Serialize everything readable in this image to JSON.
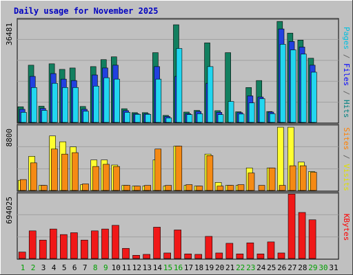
{
  "chart_data": [
    {
      "type": "bar",
      "title": "Daily usage for November 2025",
      "ymax_label": "36481",
      "ylim": [
        0,
        36481
      ],
      "categories": [
        "1",
        "2",
        "3",
        "4",
        "5",
        "6",
        "7",
        "8",
        "9",
        "10",
        "11",
        "12",
        "13",
        "14",
        "15",
        "16",
        "17",
        "18",
        "19",
        "20",
        "21",
        "22",
        "23",
        "24",
        "25",
        "26",
        "27",
        "28",
        "29",
        "30",
        "31"
      ],
      "weekend_days": [
        "1",
        "2",
        "8",
        "9",
        "15",
        "16",
        "22",
        "23",
        "29",
        "30"
      ],
      "axis_label_parts": [
        {
          "text": "Pages",
          "color": "#00c0e0"
        },
        {
          "text": " / ",
          "color": "#666666"
        },
        {
          "text": "Files",
          "color": "#0000ff"
        },
        {
          "text": " / ",
          "color": "#666666"
        },
        {
          "text": "Hits",
          "color": "#008080"
        }
      ],
      "series": [
        {
          "name": "Hits",
          "color": "#127f5f",
          "values": [
            5600,
            20500,
            5800,
            21000,
            19000,
            19500,
            5700,
            20000,
            22500,
            23500,
            4900,
            3500,
            3500,
            25000,
            2500,
            35000,
            3700,
            4300,
            28500,
            4200,
            25000,
            3800,
            12500,
            15000,
            3900,
            36200,
            32000,
            29500,
            23000,
            0,
            0
          ]
        },
        {
          "name": "Files",
          "color": "#2141e0",
          "values": [
            4700,
            16500,
            5000,
            17500,
            15500,
            15000,
            4700,
            17000,
            19500,
            20500,
            4200,
            3100,
            3100,
            20000,
            2100,
            16500,
            3100,
            3900,
            14000,
            3600,
            0,
            3500,
            9500,
            9100,
            3700,
            33500,
            29000,
            27000,
            20500,
            0,
            0
          ]
        },
        {
          "name": "Pages",
          "color": "#21d6f0",
          "values": [
            3600,
            12500,
            4300,
            14000,
            12500,
            12500,
            4000,
            13000,
            16000,
            15500,
            3600,
            2900,
            2900,
            15500,
            1600,
            26500,
            2800,
            3100,
            20000,
            2800,
            7500,
            3000,
            7000,
            8500,
            3100,
            28000,
            26000,
            24500,
            18000,
            0,
            0
          ]
        }
      ]
    },
    {
      "type": "bar",
      "ymax_label": "8800",
      "ylim": [
        0,
        8800
      ],
      "axis_label_parts": [
        {
          "text": "Sites",
          "color": "#ff8000"
        },
        {
          "text": " / ",
          "color": "#666666"
        },
        {
          "text": "Visits",
          "color": "#e0e000"
        }
      ],
      "series": [
        {
          "name": "Visits",
          "color": "#ffff30",
          "values": [
            1400,
            4700,
            700,
            7500,
            6700,
            6000,
            800,
            4200,
            4200,
            3500,
            700,
            600,
            600,
            4200,
            600,
            6100,
            700,
            600,
            5000,
            1100,
            700,
            700,
            3100,
            0,
            3100,
            8700,
            8700,
            3900,
            2600,
            0,
            0
          ]
        },
        {
          "name": "Sites",
          "color": "#f58a14",
          "values": [
            1500,
            3800,
            700,
            5700,
            5000,
            5200,
            900,
            3300,
            3600,
            3300,
            700,
            600,
            700,
            5700,
            700,
            6100,
            800,
            600,
            4800,
            600,
            700,
            800,
            2400,
            700,
            3100,
            700,
            3400,
            3400,
            2500,
            0,
            0
          ]
        }
      ]
    },
    {
      "type": "bar",
      "ymax_label": "694025",
      "ylim": [
        0,
        694025
      ],
      "axis_label_parts": [
        {
          "text": "KBytes",
          "color": "#ff0000"
        }
      ],
      "series": [
        {
          "name": "KBytes",
          "color": "#f01818",
          "values": [
            70000,
            300000,
            200000,
            320000,
            260000,
            280000,
            200000,
            300000,
            320000,
            360000,
            110000,
            35000,
            45000,
            340000,
            60000,
            310000,
            50000,
            45000,
            240000,
            60000,
            165000,
            50000,
            170000,
            50000,
            180000,
            60000,
            700000,
            500000,
            420000,
            0,
            0
          ]
        }
      ]
    }
  ]
}
